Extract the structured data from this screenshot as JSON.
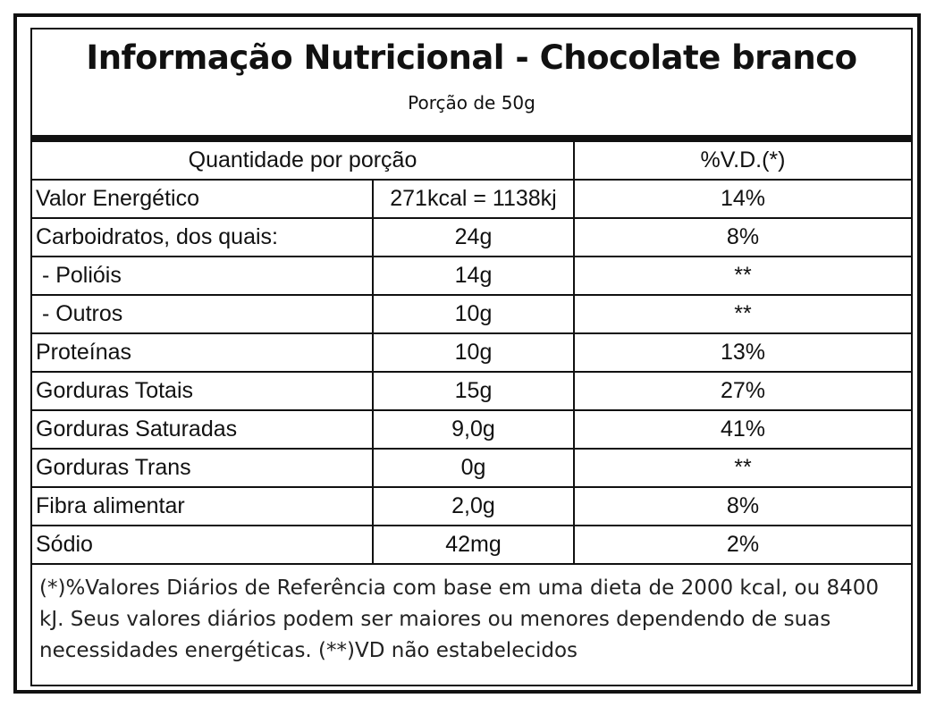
{
  "label": {
    "title": "Informação Nutricional - Chocolate branco",
    "portion": "Porção de 50g",
    "header": {
      "quantity": "Quantidade por porção",
      "dv": "%V.D.(*)"
    },
    "rows": [
      {
        "nutrient": "Valor Energético",
        "amount": "271kcal = 1138kj",
        "dv": "14%"
      },
      {
        "nutrient": "Carboidratos, dos quais:",
        "amount": "24g",
        "dv": "8%"
      },
      {
        "nutrient": " - Polióis",
        "amount": "14g",
        "dv": "**"
      },
      {
        "nutrient": " - Outros",
        "amount": "10g",
        "dv": "**"
      },
      {
        "nutrient": "Proteínas",
        "amount": "10g",
        "dv": "13%"
      },
      {
        "nutrient": "Gorduras Totais",
        "amount": "15g",
        "dv": "27%"
      },
      {
        "nutrient": "Gorduras Saturadas",
        "amount": "9,0g",
        "dv": "41%"
      },
      {
        "nutrient": "Gorduras Trans",
        "amount": "0g",
        "dv": "**"
      },
      {
        "nutrient": "Fibra alimentar",
        "amount": "2,0g",
        "dv": "8%"
      },
      {
        "nutrient": "Sódio",
        "amount": "42mg",
        "dv": "2%"
      }
    ],
    "footnote": "(*)%Valores Diários de Referência com base em uma dieta de 2000 kcal, ou 8400 kJ. Seus valores diários podem ser maiores ou menores dependendo de suas necessidades energéticas. (**)VD não estabelecidos"
  }
}
